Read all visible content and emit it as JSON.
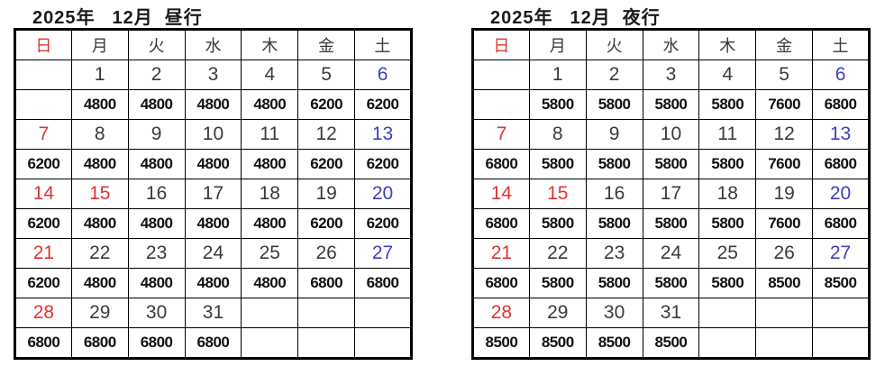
{
  "colors": {
    "red": "#e03333",
    "blue": "#3d3dc8",
    "header": "#3a3a3a",
    "date": "#3a3a3a",
    "price": "#111111",
    "title": "#1a1a1a",
    "border": "#000000"
  },
  "calendars": [
    {
      "title_year": "2025年",
      "title_month": "12月",
      "title_type": "昼行",
      "weekdays": [
        {
          "label": "日",
          "c": "red"
        },
        {
          "label": "月",
          "c": ""
        },
        {
          "label": "火",
          "c": ""
        },
        {
          "label": "水",
          "c": ""
        },
        {
          "label": "木",
          "c": ""
        },
        {
          "label": "金",
          "c": ""
        },
        {
          "label": "土",
          "c": ""
        }
      ],
      "weeks": [
        {
          "dates": [
            {
              "d": "",
              "c": ""
            },
            {
              "d": "1",
              "c": ""
            },
            {
              "d": "2",
              "c": ""
            },
            {
              "d": "3",
              "c": ""
            },
            {
              "d": "4",
              "c": ""
            },
            {
              "d": "5",
              "c": ""
            },
            {
              "d": "6",
              "c": "blue"
            }
          ],
          "prices": [
            "",
            "4800",
            "4800",
            "4800",
            "4800",
            "6200",
            "6200"
          ]
        },
        {
          "dates": [
            {
              "d": "7",
              "c": "red"
            },
            {
              "d": "8",
              "c": ""
            },
            {
              "d": "9",
              "c": ""
            },
            {
              "d": "10",
              "c": ""
            },
            {
              "d": "11",
              "c": ""
            },
            {
              "d": "12",
              "c": ""
            },
            {
              "d": "13",
              "c": "blue"
            }
          ],
          "prices": [
            "6200",
            "4800",
            "4800",
            "4800",
            "4800",
            "6200",
            "6200"
          ]
        },
        {
          "dates": [
            {
              "d": "14",
              "c": "red"
            },
            {
              "d": "15",
              "c": "red"
            },
            {
              "d": "16",
              "c": ""
            },
            {
              "d": "17",
              "c": ""
            },
            {
              "d": "18",
              "c": ""
            },
            {
              "d": "19",
              "c": ""
            },
            {
              "d": "20",
              "c": "blue"
            }
          ],
          "prices": [
            "6200",
            "4800",
            "4800",
            "4800",
            "4800",
            "6200",
            "6200"
          ]
        },
        {
          "dates": [
            {
              "d": "21",
              "c": "red"
            },
            {
              "d": "22",
              "c": ""
            },
            {
              "d": "23",
              "c": ""
            },
            {
              "d": "24",
              "c": ""
            },
            {
              "d": "25",
              "c": ""
            },
            {
              "d": "26",
              "c": ""
            },
            {
              "d": "27",
              "c": "blue"
            }
          ],
          "prices": [
            "6200",
            "4800",
            "4800",
            "4800",
            "4800",
            "6800",
            "6800"
          ]
        },
        {
          "dates": [
            {
              "d": "28",
              "c": "red"
            },
            {
              "d": "29",
              "c": ""
            },
            {
              "d": "30",
              "c": ""
            },
            {
              "d": "31",
              "c": ""
            },
            {
              "d": "",
              "c": ""
            },
            {
              "d": "",
              "c": ""
            },
            {
              "d": "",
              "c": ""
            }
          ],
          "prices": [
            "6800",
            "6800",
            "6800",
            "6800",
            "",
            "",
            ""
          ]
        }
      ]
    },
    {
      "title_year": "2025年",
      "title_month": "12月",
      "title_type": "夜行",
      "weekdays": [
        {
          "label": "日",
          "c": "red"
        },
        {
          "label": "月",
          "c": ""
        },
        {
          "label": "火",
          "c": ""
        },
        {
          "label": "水",
          "c": ""
        },
        {
          "label": "木",
          "c": ""
        },
        {
          "label": "金",
          "c": ""
        },
        {
          "label": "土",
          "c": ""
        }
      ],
      "weeks": [
        {
          "dates": [
            {
              "d": "",
              "c": ""
            },
            {
              "d": "1",
              "c": ""
            },
            {
              "d": "2",
              "c": ""
            },
            {
              "d": "3",
              "c": ""
            },
            {
              "d": "4",
              "c": ""
            },
            {
              "d": "5",
              "c": ""
            },
            {
              "d": "6",
              "c": "blue"
            }
          ],
          "prices": [
            "",
            "5800",
            "5800",
            "5800",
            "5800",
            "7600",
            "6800"
          ]
        },
        {
          "dates": [
            {
              "d": "7",
              "c": "red"
            },
            {
              "d": "8",
              "c": ""
            },
            {
              "d": "9",
              "c": ""
            },
            {
              "d": "10",
              "c": ""
            },
            {
              "d": "11",
              "c": ""
            },
            {
              "d": "12",
              "c": ""
            },
            {
              "d": "13",
              "c": "blue"
            }
          ],
          "prices": [
            "6800",
            "5800",
            "5800",
            "5800",
            "5800",
            "7600",
            "6800"
          ]
        },
        {
          "dates": [
            {
              "d": "14",
              "c": "red"
            },
            {
              "d": "15",
              "c": "red"
            },
            {
              "d": "16",
              "c": ""
            },
            {
              "d": "17",
              "c": ""
            },
            {
              "d": "18",
              "c": ""
            },
            {
              "d": "19",
              "c": ""
            },
            {
              "d": "20",
              "c": "blue"
            }
          ],
          "prices": [
            "6800",
            "5800",
            "5800",
            "5800",
            "5800",
            "7600",
            "6800"
          ]
        },
        {
          "dates": [
            {
              "d": "21",
              "c": "red"
            },
            {
              "d": "22",
              "c": ""
            },
            {
              "d": "23",
              "c": ""
            },
            {
              "d": "24",
              "c": ""
            },
            {
              "d": "25",
              "c": ""
            },
            {
              "d": "26",
              "c": ""
            },
            {
              "d": "27",
              "c": "blue"
            }
          ],
          "prices": [
            "6800",
            "5800",
            "5800",
            "5800",
            "5800",
            "8500",
            "8500"
          ]
        },
        {
          "dates": [
            {
              "d": "28",
              "c": "red"
            },
            {
              "d": "29",
              "c": ""
            },
            {
              "d": "30",
              "c": ""
            },
            {
              "d": "31",
              "c": ""
            },
            {
              "d": "",
              "c": ""
            },
            {
              "d": "",
              "c": ""
            },
            {
              "d": "",
              "c": ""
            }
          ],
          "prices": [
            "8500",
            "8500",
            "8500",
            "8500",
            "",
            "",
            ""
          ]
        }
      ]
    }
  ],
  "chart_data": [
    {
      "type": "table",
      "title": "2025年 12月 昼行",
      "columns": [
        "日",
        "月",
        "火",
        "水",
        "木",
        "金",
        "土"
      ],
      "rows": [
        [
          "",
          "1",
          "2",
          "3",
          "4",
          "5",
          "6"
        ],
        [
          "",
          "4800",
          "4800",
          "4800",
          "4800",
          "6200",
          "6200"
        ],
        [
          "7",
          "8",
          "9",
          "10",
          "11",
          "12",
          "13"
        ],
        [
          "6200",
          "4800",
          "4800",
          "4800",
          "4800",
          "6200",
          "6200"
        ],
        [
          "14",
          "15",
          "16",
          "17",
          "18",
          "19",
          "20"
        ],
        [
          "6200",
          "4800",
          "4800",
          "4800",
          "4800",
          "6200",
          "6200"
        ],
        [
          "21",
          "22",
          "23",
          "24",
          "25",
          "26",
          "27"
        ],
        [
          "6200",
          "4800",
          "4800",
          "4800",
          "4800",
          "6800",
          "6800"
        ],
        [
          "28",
          "29",
          "30",
          "31",
          "",
          "",
          ""
        ],
        [
          "6800",
          "6800",
          "6800",
          "6800",
          "",
          "",
          ""
        ]
      ]
    },
    {
      "type": "table",
      "title": "2025年 12月 夜行",
      "columns": [
        "日",
        "月",
        "火",
        "水",
        "木",
        "金",
        "土"
      ],
      "rows": [
        [
          "",
          "1",
          "2",
          "3",
          "4",
          "5",
          "6"
        ],
        [
          "",
          "5800",
          "5800",
          "5800",
          "5800",
          "7600",
          "6800"
        ],
        [
          "7",
          "8",
          "9",
          "10",
          "11",
          "12",
          "13"
        ],
        [
          "6800",
          "5800",
          "5800",
          "5800",
          "5800",
          "7600",
          "6800"
        ],
        [
          "14",
          "15",
          "16",
          "17",
          "18",
          "19",
          "20"
        ],
        [
          "6800",
          "5800",
          "5800",
          "5800",
          "5800",
          "7600",
          "6800"
        ],
        [
          "21",
          "22",
          "23",
          "24",
          "25",
          "26",
          "27"
        ],
        [
          "6800",
          "5800",
          "5800",
          "5800",
          "5800",
          "8500",
          "8500"
        ],
        [
          "28",
          "29",
          "30",
          "31",
          "",
          "",
          ""
        ],
        [
          "8500",
          "8500",
          "8500",
          "8500",
          "",
          "",
          ""
        ]
      ]
    }
  ]
}
